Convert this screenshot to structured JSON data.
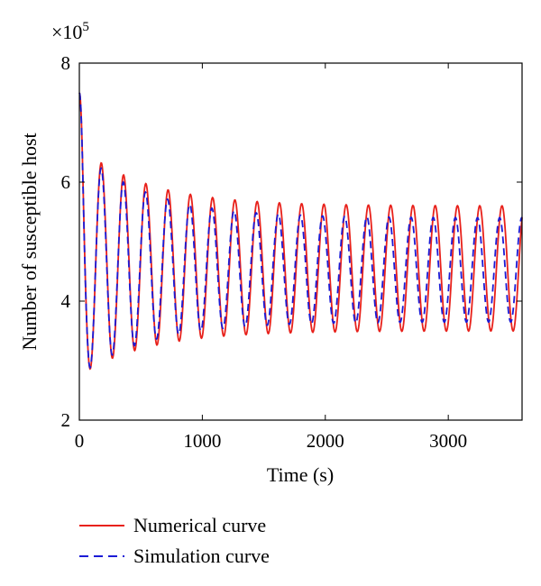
{
  "chart_data": {
    "type": "line",
    "xlabel": "Time (s)",
    "ylabel": "Number of susceptible host",
    "y_multiplier_base": "×10",
    "y_multiplier_exp": "5",
    "xlim": [
      0,
      3600
    ],
    "ylim": [
      2,
      8
    ],
    "x_ticks": [
      0,
      1000,
      2000,
      3000
    ],
    "x_tick_labels": [
      "0",
      "1000",
      "2000",
      "3000"
    ],
    "y_ticks": [
      2,
      4,
      6,
      8
    ],
    "y_tick_labels": [
      "2",
      "4",
      "6",
      "8"
    ],
    "grid": false,
    "legend_position": "below",
    "series": [
      {
        "name": "Numerical curve",
        "color": "#e8211b",
        "dash": "solid",
        "period_s": 181,
        "start_value": 7.5,
        "first_peak": 6.6,
        "first_trough": 2.75,
        "settled_max": 5.6,
        "settled_min": 3.5
      },
      {
        "name": "Simulation curve",
        "color": "#1b1bd6",
        "dash": "dashed",
        "period_s": 180,
        "start_value": 7.5,
        "first_peak": 6.55,
        "first_trough": 2.75,
        "settled_max": 5.4,
        "settled_min": 3.65
      }
    ]
  }
}
